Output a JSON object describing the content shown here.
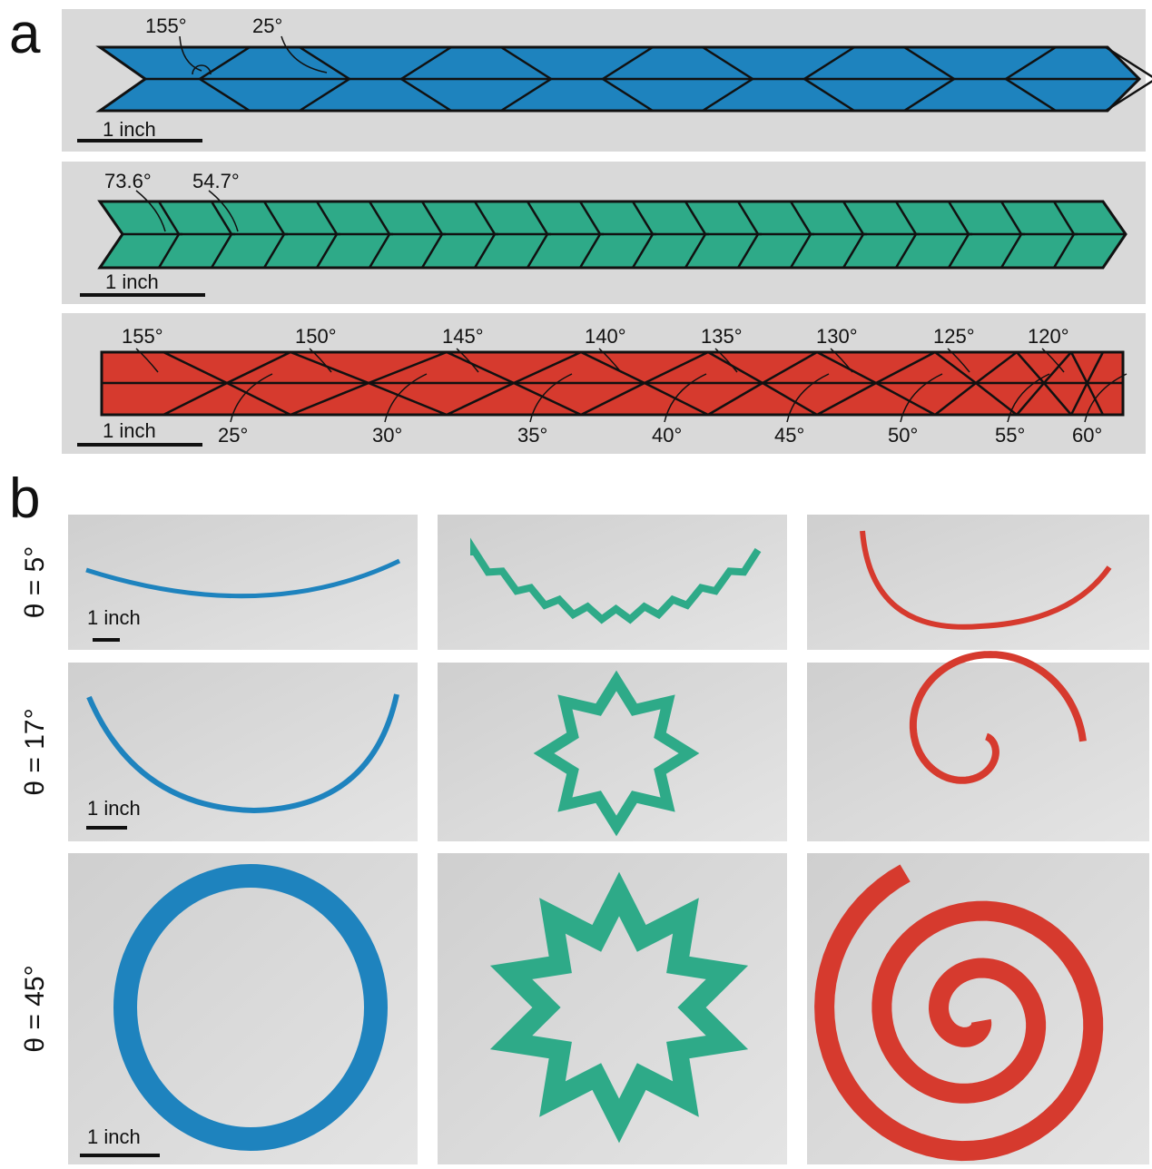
{
  "panels": [
    {
      "label": "a",
      "strips": [
        {
          "color": "#1e83be",
          "top_angles": [
            "155°",
            "25°"
          ],
          "scale": "1 inch"
        },
        {
          "color": "#2eaa88",
          "top_angles": [
            "73.6°",
            "54.7°"
          ],
          "scale": "1 inch"
        },
        {
          "color": "#d63a2e",
          "top_angles": [
            "155°",
            "150°",
            "145°",
            "140°",
            "135°",
            "130°",
            "125°",
            "120°"
          ],
          "bottom_angles": [
            "25°",
            "30°",
            "35°",
            "40°",
            "45°",
            "50°",
            "55°",
            "60°"
          ],
          "scale": "1 inch"
        }
      ]
    },
    {
      "label": "b",
      "rows": [
        {
          "label": "θ = 5°",
          "scale": "1 inch"
        },
        {
          "label": "θ = 17°",
          "scale": "1 inch"
        },
        {
          "label": "θ = 45°",
          "scale": "1 inch"
        }
      ]
    }
  ]
}
